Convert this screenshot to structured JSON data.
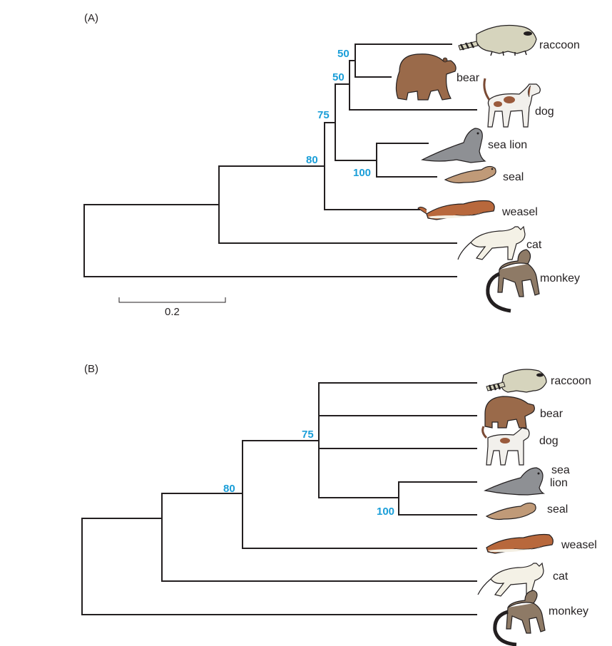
{
  "panels": [
    {
      "label": "(A)",
      "scale_bar": {
        "label": "0.2"
      },
      "support_values": [
        "50",
        "50",
        "75",
        "80",
        "100"
      ],
      "leaves": [
        {
          "name": "raccoon",
          "icon": "raccoon-icon",
          "color": "#d6d4bd"
        },
        {
          "name": "bear",
          "icon": "bear-icon",
          "color": "#9a6a4a"
        },
        {
          "name": "dog",
          "icon": "dog-icon",
          "color": "#f2f0ec"
        },
        {
          "name": "sea lion",
          "icon": "sea-lion-icon",
          "color": "#8e9094"
        },
        {
          "name": "seal",
          "icon": "seal-icon",
          "color": "#c09a78"
        },
        {
          "name": "weasel",
          "icon": "weasel-icon",
          "color": "#b8683c"
        },
        {
          "name": "cat",
          "icon": "cat-icon",
          "color": "#f4f1e6"
        },
        {
          "name": "monkey",
          "icon": "monkey-icon",
          "color": "#8e7a66"
        }
      ]
    },
    {
      "label": "(B)",
      "support_values": [
        "75",
        "80",
        "100"
      ],
      "leaves": [
        {
          "name": "raccoon",
          "icon": "raccoon-icon",
          "color": "#d6d4bd"
        },
        {
          "name": "bear",
          "icon": "bear-icon",
          "color": "#9a6a4a"
        },
        {
          "name": "dog",
          "icon": "dog-icon",
          "color": "#f2f0ec"
        },
        {
          "name": "sea",
          "name2": "lion",
          "icon": "sea-lion-icon",
          "color": "#8e9094"
        },
        {
          "name": "seal",
          "icon": "seal-icon",
          "color": "#c09a78"
        },
        {
          "name": "weasel",
          "icon": "weasel-icon",
          "color": "#b8683c"
        },
        {
          "name": "cat",
          "icon": "cat-icon",
          "color": "#f4f1e6"
        },
        {
          "name": "monkey",
          "icon": "monkey-icon",
          "color": "#8e7a66"
        }
      ]
    }
  ],
  "colors": {
    "support": "#1a9ed8",
    "branch": "#231f20"
  }
}
